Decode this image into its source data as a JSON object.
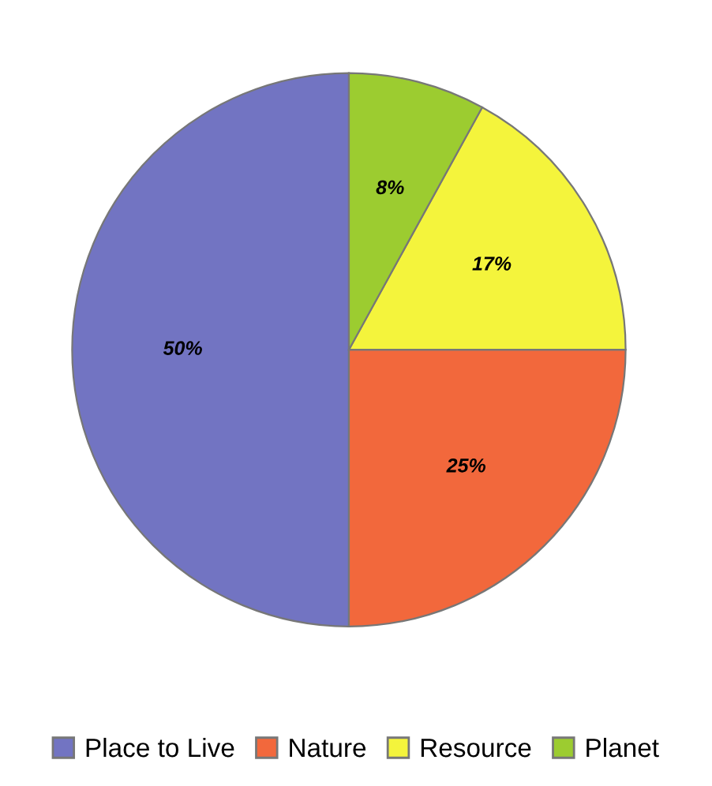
{
  "chart_data": {
    "type": "pie",
    "categories": [
      "Place to Live",
      "Nature",
      "Resource",
      "Planet"
    ],
    "values": [
      50,
      25,
      17,
      8
    ],
    "colors": [
      "#7274c2",
      "#f2683c",
      "#f4f43c",
      "#9ccc30"
    ],
    "value_labels": [
      "50%",
      "25%",
      "17%",
      "8%"
    ],
    "legend": "bottom"
  }
}
